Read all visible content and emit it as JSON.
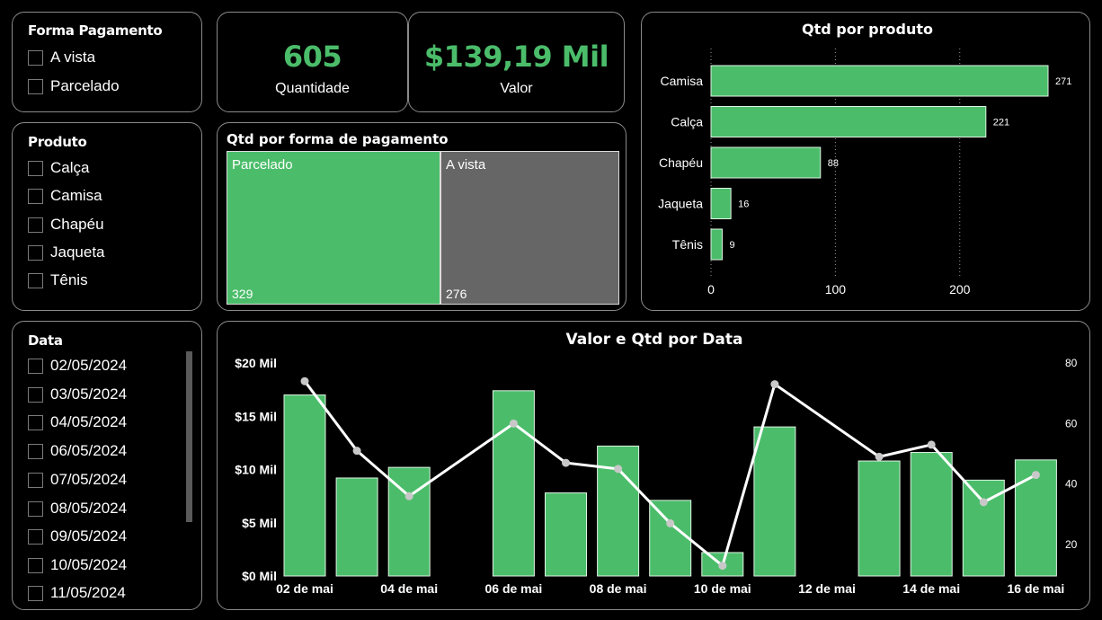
{
  "colors": {
    "accent": "#4bbd6a",
    "neutral": "#666666",
    "line": "#ffffff",
    "marker": "#c8c8c8",
    "border": "#8a8a8a"
  },
  "slicers": {
    "forma_pagamento": {
      "title": "Forma Pagamento",
      "items": [
        "A vista",
        "Parcelado"
      ]
    },
    "produto": {
      "title": "Produto",
      "items": [
        "Calça",
        "Camisa",
        "Chapéu",
        "Jaqueta",
        "Tênis"
      ]
    },
    "data": {
      "title": "Data",
      "items": [
        "02/05/2024",
        "03/05/2024",
        "04/05/2024",
        "06/05/2024",
        "07/05/2024",
        "08/05/2024",
        "09/05/2024",
        "10/05/2024",
        "11/05/2024"
      ]
    }
  },
  "kpis": {
    "quantidade": {
      "value": "605",
      "label": "Quantidade"
    },
    "valor": {
      "value": "$139,19 Mil",
      "label": "Valor"
    }
  },
  "chart_data": [
    {
      "type": "treemap",
      "title": "Qtd por forma de pagamento",
      "categories": [
        "Parcelado",
        "A vista"
      ],
      "values": [
        329,
        276
      ],
      "value_labels": [
        "329",
        "276"
      ],
      "colors": [
        "#4bbd6a",
        "#666666"
      ]
    },
    {
      "type": "bar",
      "orientation": "horizontal",
      "title": "Qtd por produto",
      "categories": [
        "Camisa",
        "Calça",
        "Chapéu",
        "Jaqueta",
        "Tênis"
      ],
      "values": [
        271,
        221,
        88,
        16,
        9
      ],
      "xlim": [
        0,
        290
      ],
      "xticks": [
        0,
        100,
        200
      ],
      "xtick_labels": [
        "0",
        "100",
        "200"
      ],
      "grid": "dotted-vertical"
    },
    {
      "type": "bar+line",
      "title": "Valor e Qtd por Data",
      "x": [
        "02",
        "03",
        "04",
        "05",
        "06",
        "07",
        "08",
        "09",
        "10",
        "11",
        "12",
        "13",
        "14",
        "15",
        "16"
      ],
      "xtick_labels": [
        "02 de mai",
        "04 de mai",
        "06 de mai",
        "08 de mai",
        "10 de mai",
        "12 de mai",
        "14 de mai",
        "16 de mai"
      ],
      "xtick_positions": [
        "02",
        "04",
        "06",
        "08",
        "10",
        "12",
        "14",
        "16"
      ],
      "series": [
        {
          "name": "Valor",
          "type": "bar",
          "axis": "left",
          "unit": "Mil",
          "values": [
            17.0,
            9.2,
            10.2,
            null,
            17.4,
            7.8,
            12.2,
            7.1,
            2.2,
            14.0,
            null,
            10.8,
            11.6,
            9.0,
            10.9
          ]
        },
        {
          "name": "Qtd",
          "type": "line",
          "axis": "right",
          "values": [
            74,
            51,
            36,
            null,
            60,
            47,
            45,
            27,
            13,
            73,
            null,
            49,
            53,
            34,
            43
          ]
        }
      ],
      "ylim_left": [
        0,
        20
      ],
      "yticks_left": [
        0,
        5,
        10,
        15,
        20
      ],
      "ytick_labels_left": [
        "$0 Mil",
        "$5 Mil",
        "$10 Mil",
        "$15 Mil",
        "$20 Mil"
      ],
      "ylim_right": [
        10,
        80
      ],
      "yticks_right": [
        20,
        40,
        60,
        80
      ],
      "ytick_labels_right": [
        "20",
        "40",
        "60",
        "80"
      ]
    }
  ]
}
